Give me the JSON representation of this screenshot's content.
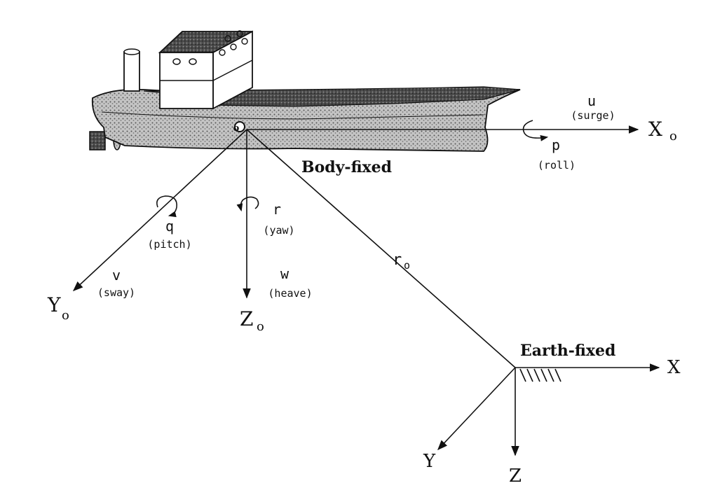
{
  "frames": {
    "body_fixed": "Body-fixed",
    "earth_fixed": "Earth-fixed"
  },
  "origin": "o",
  "body_axes": {
    "x": "X",
    "x_sub": "o",
    "y": "Y",
    "y_sub": "o",
    "z": "Z",
    "z_sub": "o"
  },
  "earth_axes": {
    "x": "X",
    "y": "Y",
    "z": "Z"
  },
  "position_vector": {
    "label": "r",
    "sub": "o"
  },
  "motions": {
    "surge": {
      "symbol": "u",
      "name": "(surge)"
    },
    "roll": {
      "symbol": "p",
      "name": "(roll)"
    },
    "pitch": {
      "symbol": "q",
      "name": "(pitch)"
    },
    "yaw": {
      "symbol": "r",
      "name": "(yaw)"
    },
    "sway": {
      "symbol": "v",
      "name": "(sway)"
    },
    "heave": {
      "symbol": "w",
      "name": "(heave)"
    }
  },
  "colors": {
    "ink": "#111111",
    "hull": "#b8b8b8",
    "dark": "#3a3a3a",
    "paper": "#ffffff"
  }
}
